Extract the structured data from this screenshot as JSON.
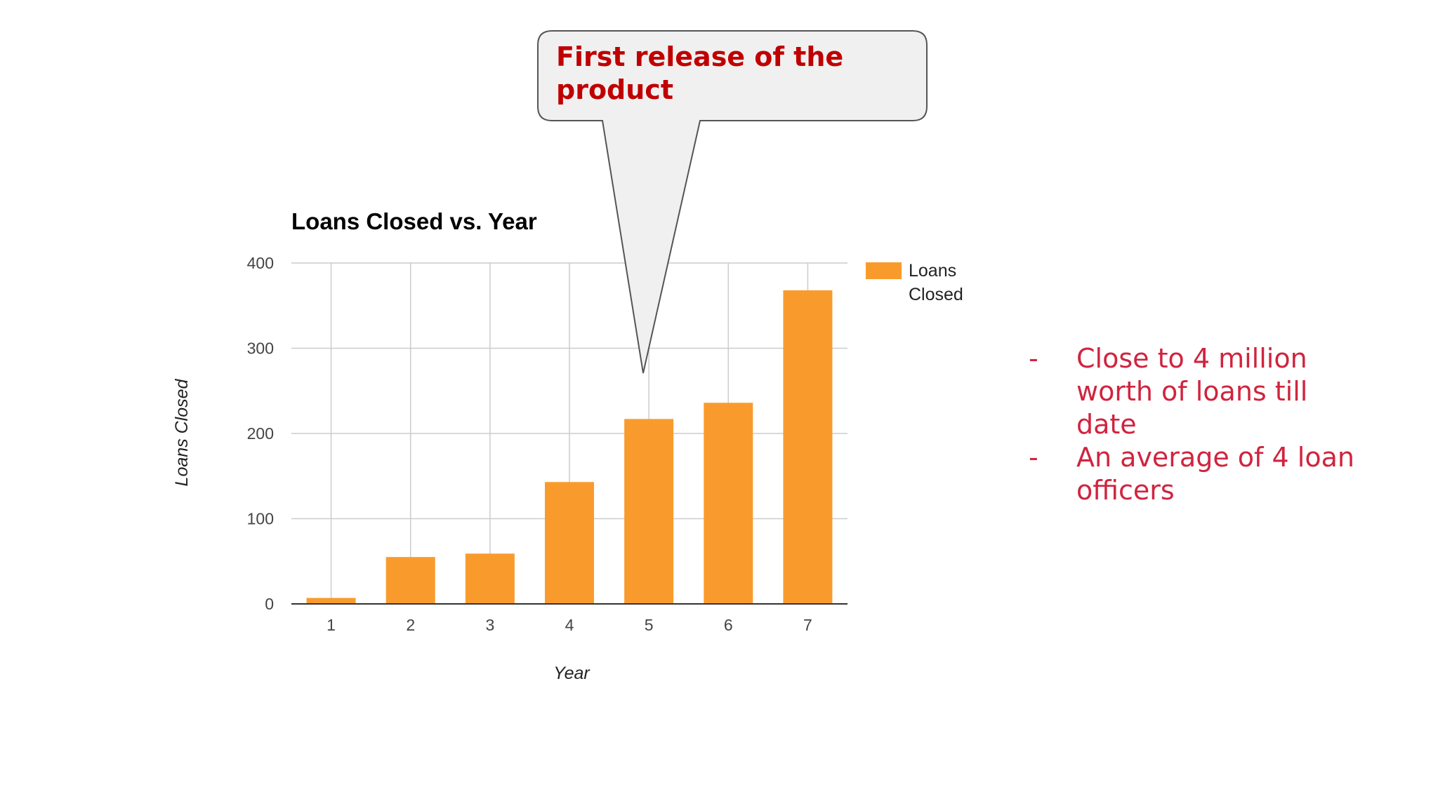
{
  "callout": {
    "text": "First release of the product"
  },
  "bullets": [
    {
      "marker": "-",
      "text": "Close to 4 million worth of loans till date"
    },
    {
      "marker": "-",
      "text": "An average of 4 loan officers"
    }
  ],
  "colors": {
    "bar": "#f99b2c",
    "callout_text": "#c00000",
    "bullet_text": "#d0243f",
    "grid": "#cccccc"
  },
  "chart_data": {
    "type": "bar",
    "title": "Loans Closed vs. Year",
    "xlabel": "Year",
    "ylabel": "Loans Closed",
    "categories": [
      "1",
      "2",
      "3",
      "4",
      "5",
      "6",
      "7"
    ],
    "series": [
      {
        "name": "Loans Closed",
        "values": [
          7,
          55,
          59,
          143,
          217,
          236,
          368
        ]
      }
    ],
    "ylim": [
      0,
      400
    ],
    "yticks": [
      "0",
      "100",
      "200",
      "300",
      "400"
    ],
    "legend_labels": [
      "Loans",
      "Closed"
    ],
    "legend_position": "right",
    "grid": true
  }
}
